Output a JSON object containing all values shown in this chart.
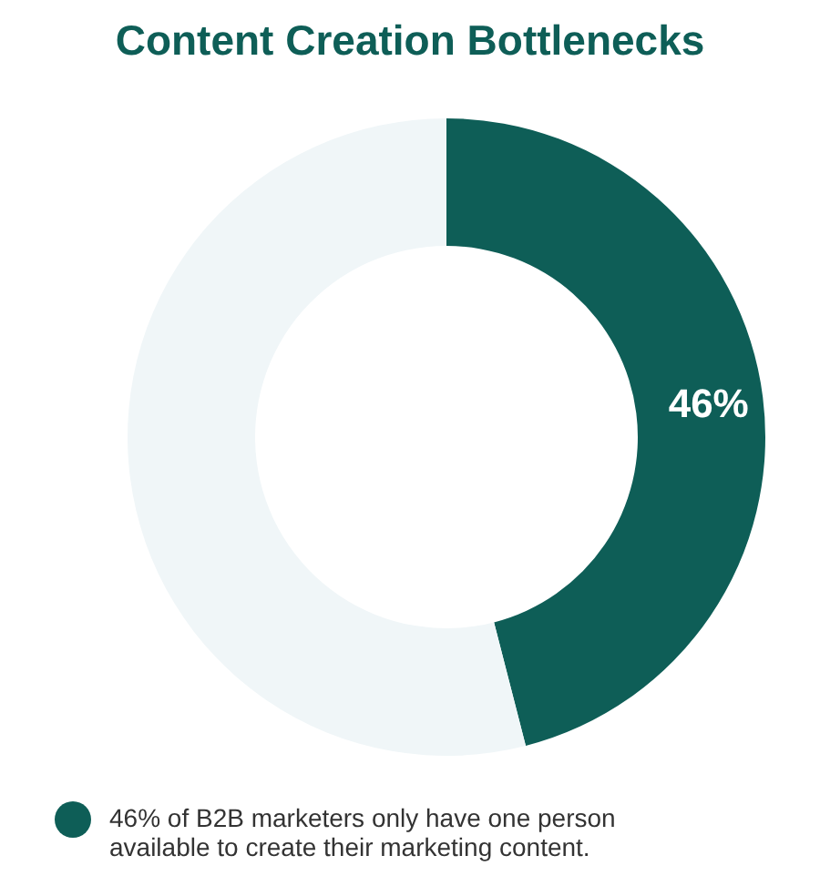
{
  "chart_data": {
    "type": "donut",
    "title": "Content Creation Bottlenecks",
    "categories": [
      "46% of B2B marketers only have one person available to create their marketing content.",
      null
    ],
    "values": [
      46,
      54
    ],
    "colors": [
      "#0e5e57",
      "#f0f6f8"
    ],
    "value_labels": [
      "46%",
      null
    ],
    "legend": "bottom"
  }
}
